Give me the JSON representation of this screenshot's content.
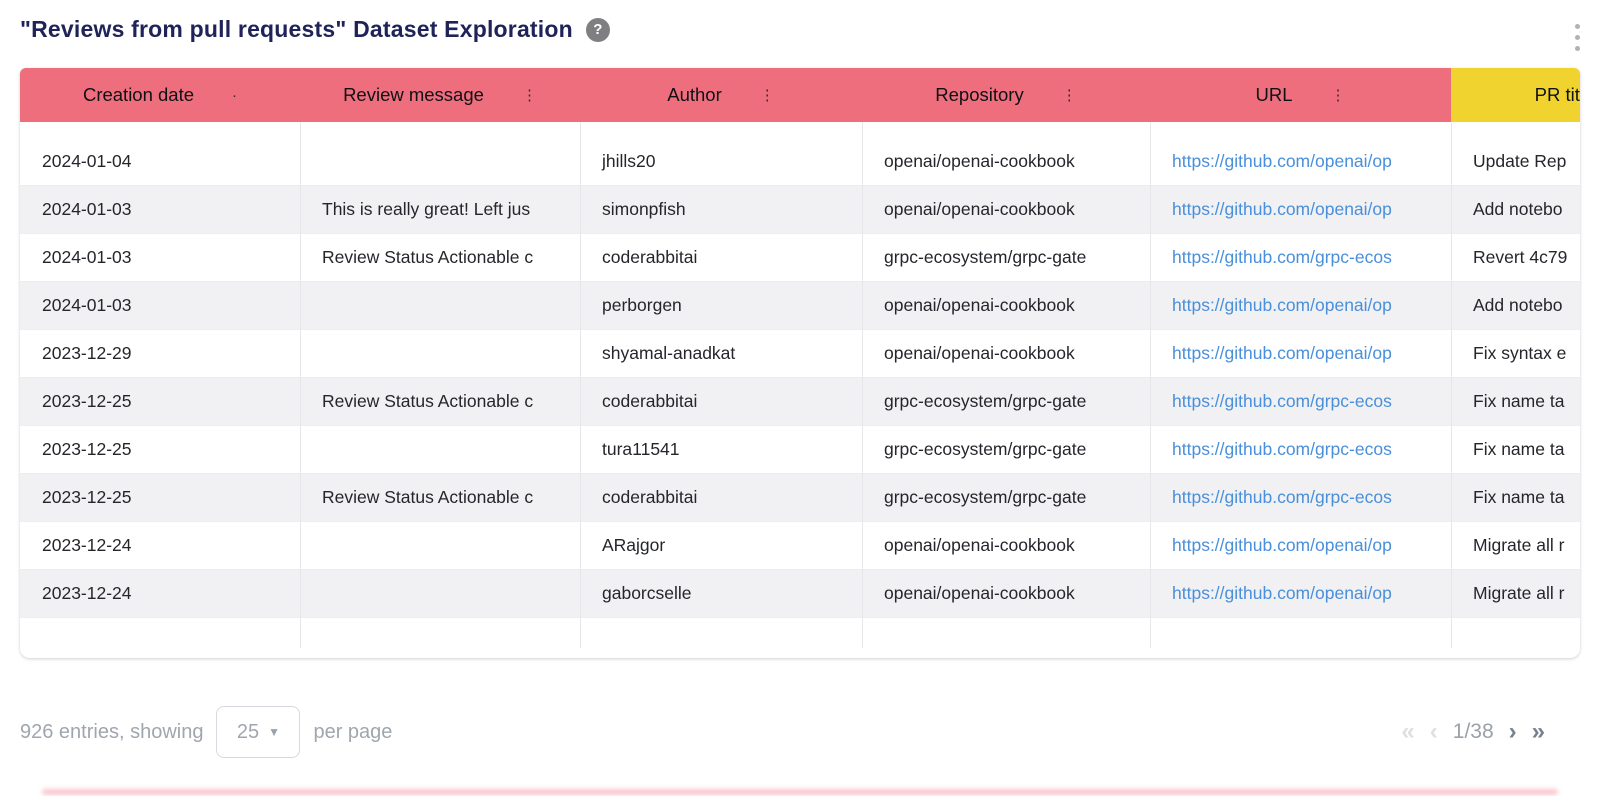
{
  "header": {
    "title": "\"Reviews from pull requests\" Dataset Exploration",
    "help_glyph": "?"
  },
  "table": {
    "columns": [
      {
        "label": "Creation date",
        "menu_glyph": "·"
      },
      {
        "label": "Review message",
        "menu_glyph": "⋮"
      },
      {
        "label": "Author",
        "menu_glyph": "⋮"
      },
      {
        "label": "Repository",
        "menu_glyph": "⋮"
      },
      {
        "label": "URL",
        "menu_glyph": "⋮"
      },
      {
        "label": "PR title",
        "menu_glyph": "⋮"
      }
    ],
    "header_colors": {
      "main": "#ee6e7e",
      "highlight": "#f0d32f"
    },
    "link_color": "#4a8fd9",
    "rows": [
      {
        "creation_date": "2024-01-04",
        "review_message": "",
        "author": "jhills20",
        "repository": "openai/openai-cookbook",
        "url": "https://github.com/openai/op",
        "pr_title": "Update Rep"
      },
      {
        "creation_date": "2024-01-03",
        "review_message": "This is really great! Left jus",
        "author": "simonpfish",
        "repository": "openai/openai-cookbook",
        "url": "https://github.com/openai/op",
        "pr_title": "Add notebo"
      },
      {
        "creation_date": "2024-01-03",
        "review_message": "Review Status Actionable c",
        "author": "coderabbitai",
        "repository": "grpc-ecosystem/grpc-gate",
        "url": "https://github.com/grpc-ecos",
        "pr_title": "Revert 4c79"
      },
      {
        "creation_date": "2024-01-03",
        "review_message": "",
        "author": "perborgen",
        "repository": "openai/openai-cookbook",
        "url": "https://github.com/openai/op",
        "pr_title": "Add notebo"
      },
      {
        "creation_date": "2023-12-29",
        "review_message": "",
        "author": "shyamal-anadkat",
        "repository": "openai/openai-cookbook",
        "url": "https://github.com/openai/op",
        "pr_title": "Fix syntax e"
      },
      {
        "creation_date": "2023-12-25",
        "review_message": "Review Status Actionable c",
        "author": "coderabbitai",
        "repository": "grpc-ecosystem/grpc-gate",
        "url": "https://github.com/grpc-ecos",
        "pr_title": "Fix name ta"
      },
      {
        "creation_date": "2023-12-25",
        "review_message": "",
        "author": "tura11541",
        "repository": "grpc-ecosystem/grpc-gate",
        "url": "https://github.com/grpc-ecos",
        "pr_title": "Fix name ta"
      },
      {
        "creation_date": "2023-12-25",
        "review_message": "Review Status Actionable c",
        "author": "coderabbitai",
        "repository": "grpc-ecosystem/grpc-gate",
        "url": "https://github.com/grpc-ecos",
        "pr_title": "Fix name ta"
      },
      {
        "creation_date": "2023-12-24",
        "review_message": "",
        "author": "ARajgor",
        "repository": "openai/openai-cookbook",
        "url": "https://github.com/openai/op",
        "pr_title": "Migrate all r"
      },
      {
        "creation_date": "2023-12-24",
        "review_message": "",
        "author": "gaborcselle",
        "repository": "openai/openai-cookbook",
        "url": "https://github.com/openai/op",
        "pr_title": "Migrate all r"
      }
    ]
  },
  "footer": {
    "entries_text": "926 entries, showing",
    "page_size": "25",
    "caret_glyph": "▼",
    "per_page_text": "per page",
    "first_glyph": "«",
    "prev_glyph": "‹",
    "page_indicator": "1/38",
    "next_glyph": "›",
    "last_glyph": "»"
  }
}
